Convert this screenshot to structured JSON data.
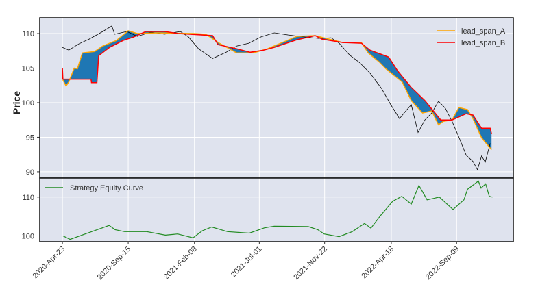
{
  "chart_data": [
    {
      "type": "line",
      "ylabel": "Price",
      "xlim": [
        "2020-03-04",
        "2023-01-12"
      ],
      "ylim": [
        89.1,
        112.28
      ],
      "yticks": [
        90,
        95,
        100,
        105,
        110
      ],
      "xticks": [
        "2020-Apr-23",
        "2020-Sep-15",
        "2021-Feb-08",
        "2021-Jul-01",
        "2021-Nov-22",
        "2022-Apr-18",
        "2022-Sep-09"
      ],
      "grid": true,
      "legend_position": "top-right",
      "fill_color": "#1f77b4",
      "series": [
        {
          "key": "close",
          "color": "#000000",
          "points": [
            [
              "2020-04-23",
              108.0
            ],
            [
              "2020-05-07",
              107.6
            ],
            [
              "2020-05-29",
              108.5
            ],
            [
              "2020-06-21",
              109.2
            ],
            [
              "2020-07-21",
              110.3
            ],
            [
              "2020-08-10",
              111.1
            ],
            [
              "2020-08-16",
              109.9
            ],
            [
              "2020-09-12",
              110.3
            ],
            [
              "2020-10-05",
              109.6
            ],
            [
              "2020-11-04",
              110.2
            ],
            [
              "2020-12-04",
              109.9
            ],
            [
              "2021-01-08",
              110.3
            ],
            [
              "2021-01-26",
              109.5
            ],
            [
              "2021-02-17",
              107.8
            ],
            [
              "2021-03-20",
              106.4
            ],
            [
              "2021-04-19",
              107.3
            ],
            [
              "2021-05-12",
              108.2
            ],
            [
              "2021-06-08",
              108.6
            ],
            [
              "2021-07-04",
              109.5
            ],
            [
              "2021-08-03",
              110.1
            ],
            [
              "2021-09-02",
              109.8
            ],
            [
              "2021-10-10",
              109.5
            ],
            [
              "2021-11-09",
              109.3
            ],
            [
              "2021-12-06",
              109.4
            ],
            [
              "2021-12-24",
              108.6
            ],
            [
              "2022-01-16",
              106.9
            ],
            [
              "2022-02-07",
              105.8
            ],
            [
              "2022-03-02",
              104.3
            ],
            [
              "2022-03-28",
              102.0
            ],
            [
              "2022-04-16",
              99.8
            ],
            [
              "2022-05-06",
              97.7
            ],
            [
              "2022-05-20",
              98.8
            ],
            [
              "2022-06-01",
              99.7
            ],
            [
              "2022-06-16",
              95.7
            ],
            [
              "2022-07-01",
              97.5
            ],
            [
              "2022-07-16",
              98.5
            ],
            [
              "2022-07-31",
              100.2
            ],
            [
              "2022-08-15",
              99.2
            ],
            [
              "2022-08-30",
              97.3
            ],
            [
              "2022-09-14",
              95.0
            ],
            [
              "2022-09-30",
              92.4
            ],
            [
              "2022-10-15",
              91.5
            ],
            [
              "2022-10-25",
              90.3
            ],
            [
              "2022-11-03",
              92.3
            ],
            [
              "2022-11-11",
              91.4
            ],
            [
              "2022-11-22",
              94.1
            ]
          ]
        },
        {
          "key": "lead_span_A",
          "name": "lead_span_A",
          "color": "#ffa500",
          "points": [
            [
              "2020-04-24",
              103.3
            ],
            [
              "2020-05-01",
              102.4
            ],
            [
              "2020-05-07",
              103.0
            ],
            [
              "2020-05-19",
              105.0
            ],
            [
              "2020-05-26",
              104.9
            ],
            [
              "2020-06-06",
              107.2
            ],
            [
              "2020-07-03",
              107.4
            ],
            [
              "2020-07-21",
              108.2
            ],
            [
              "2020-08-20",
              109.0
            ],
            [
              "2020-09-15",
              110.4
            ],
            [
              "2020-10-05",
              110.0
            ],
            [
              "2020-11-19",
              110.1
            ],
            [
              "2021-02-07",
              110.0
            ],
            [
              "2021-03-05",
              109.9
            ],
            [
              "2021-04-04",
              108.6
            ],
            [
              "2021-05-12",
              107.2
            ],
            [
              "2021-06-18",
              107.2
            ],
            [
              "2021-07-19",
              107.8
            ],
            [
              "2021-09-22",
              109.6
            ],
            [
              "2021-11-01",
              109.7
            ],
            [
              "2022-01-01",
              108.7
            ],
            [
              "2022-02-11",
              108.7
            ],
            [
              "2022-02-26",
              107.2
            ],
            [
              "2022-03-22",
              105.9
            ],
            [
              "2022-04-06",
              104.9
            ],
            [
              "2022-05-12",
              103.0
            ],
            [
              "2022-06-01",
              100.3
            ],
            [
              "2022-06-26",
              98.5
            ],
            [
              "2022-07-16",
              98.8
            ],
            [
              "2022-07-31",
              96.8
            ],
            [
              "2022-08-11",
              97.3
            ],
            [
              "2022-08-30",
              97.5
            ],
            [
              "2022-09-14",
              99.3
            ],
            [
              "2022-10-03",
              99.0
            ],
            [
              "2022-10-15",
              97.7
            ],
            [
              "2022-11-03",
              94.9
            ],
            [
              "2022-11-25",
              93.2
            ]
          ]
        },
        {
          "key": "lead_span_B",
          "name": "lead_span_B",
          "color": "#ff0000",
          "points": [
            [
              "2020-04-23",
              105.0
            ],
            [
              "2020-04-24",
              103.4
            ],
            [
              "2020-06-25",
              103.4
            ],
            [
              "2020-06-26",
              102.9
            ],
            [
              "2020-07-08",
              102.9
            ],
            [
              "2020-07-12",
              106.8
            ],
            [
              "2020-08-05",
              108.0
            ],
            [
              "2020-09-04",
              109.0
            ],
            [
              "2020-09-27",
              109.5
            ],
            [
              "2020-10-24",
              110.3
            ],
            [
              "2020-12-04",
              110.3
            ],
            [
              "2021-01-03",
              110.0
            ],
            [
              "2021-03-20",
              109.7
            ],
            [
              "2021-04-01",
              108.4
            ],
            [
              "2021-05-12",
              107.8
            ],
            [
              "2021-06-11",
              107.3
            ],
            [
              "2021-07-11",
              107.6
            ],
            [
              "2021-08-03",
              108.0
            ],
            [
              "2021-09-22",
              109.1
            ],
            [
              "2021-11-01",
              109.7
            ],
            [
              "2021-11-16",
              109.2
            ],
            [
              "2022-01-01",
              108.7
            ],
            [
              "2022-02-11",
              108.6
            ],
            [
              "2022-03-02",
              107.6
            ],
            [
              "2022-04-12",
              106.6
            ],
            [
              "2022-05-02",
              104.6
            ],
            [
              "2022-06-01",
              102.2
            ],
            [
              "2022-07-01",
              100.3
            ],
            [
              "2022-07-21",
              98.7
            ],
            [
              "2022-08-05",
              97.5
            ],
            [
              "2022-08-30",
              97.5
            ],
            [
              "2022-09-30",
              98.4
            ],
            [
              "2022-10-15",
              98.2
            ],
            [
              "2022-11-03",
              96.3
            ],
            [
              "2022-11-22",
              96.3
            ],
            [
              "2022-11-25",
              95.5
            ]
          ]
        }
      ]
    },
    {
      "type": "line",
      "xlim": [
        "2020-03-04",
        "2023-01-12"
      ],
      "ylim": [
        98.5,
        114.9
      ],
      "yticks": [
        100,
        110
      ],
      "grid": true,
      "legend_position": "top-left",
      "series": [
        {
          "key": "equity",
          "name": "Strategy Equity Curve",
          "color": "#228b22",
          "points": [
            [
              "2020-04-24",
              100.0
            ],
            [
              "2020-05-10",
              99.1
            ],
            [
              "2020-06-10",
              100.4
            ],
            [
              "2020-08-04",
              102.7
            ],
            [
              "2020-08-17",
              101.6
            ],
            [
              "2020-09-07",
              101.1
            ],
            [
              "2020-10-26",
              101.1
            ],
            [
              "2020-12-06",
              100.2
            ],
            [
              "2021-01-02",
              100.5
            ],
            [
              "2021-02-05",
              99.5
            ],
            [
              "2021-02-25",
              101.3
            ],
            [
              "2021-03-18",
              102.3
            ],
            [
              "2021-04-22",
              101.1
            ],
            [
              "2021-06-09",
              100.7
            ],
            [
              "2021-07-13",
              102.1
            ],
            [
              "2021-08-03",
              102.5
            ],
            [
              "2021-10-17",
              102.4
            ],
            [
              "2021-11-07",
              101.6
            ],
            [
              "2021-11-21",
              100.5
            ],
            [
              "2021-12-24",
              99.8
            ],
            [
              "2022-01-22",
              101.1
            ],
            [
              "2022-02-18",
              103.2
            ],
            [
              "2022-03-04",
              102.0
            ],
            [
              "2022-03-25",
              105.2
            ],
            [
              "2022-04-21",
              108.9
            ],
            [
              "2022-05-11",
              110.2
            ],
            [
              "2022-06-01",
              108.2
            ],
            [
              "2022-06-18",
              113.0
            ],
            [
              "2022-07-06",
              109.3
            ],
            [
              "2022-08-02",
              110.0
            ],
            [
              "2022-09-01",
              106.8
            ],
            [
              "2022-09-25",
              109.3
            ],
            [
              "2022-10-03",
              112.0
            ],
            [
              "2022-10-27",
              114.1
            ],
            [
              "2022-11-02",
              112.3
            ],
            [
              "2022-11-12",
              113.4
            ],
            [
              "2022-11-20",
              110.2
            ],
            [
              "2022-11-27",
              110.0
            ]
          ]
        }
      ]
    }
  ]
}
